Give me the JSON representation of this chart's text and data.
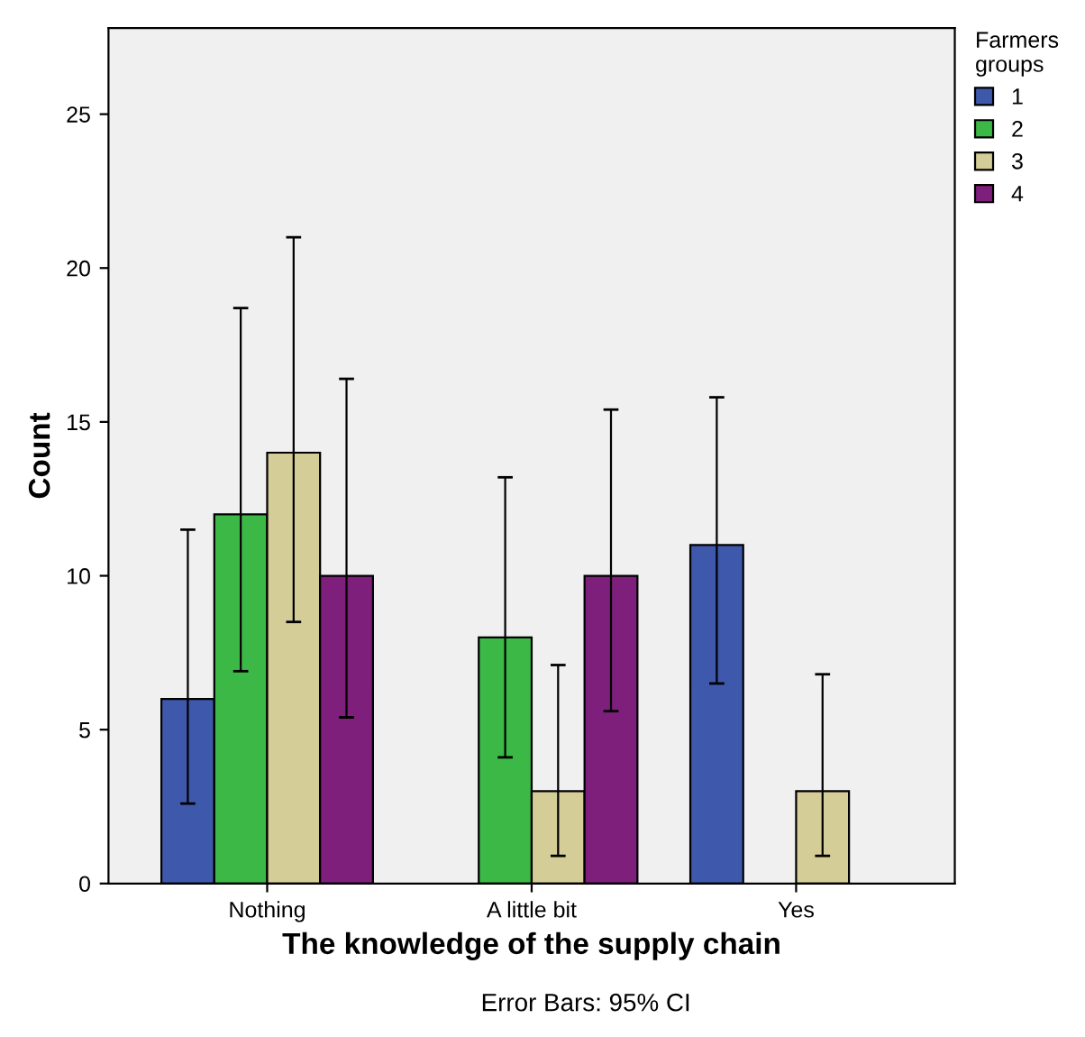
{
  "chart_data": {
    "type": "bar",
    "xlabel": "The knowledge of the supply chain",
    "ylabel": "Count",
    "legend_title": "Farmers\ngroups",
    "categories": [
      "Nothing",
      "A little bit",
      "Yes"
    ],
    "series": [
      {
        "name": "1",
        "color": "#3e58ac",
        "values": [
          6,
          null,
          11
        ],
        "errors": [
          [
            2.6,
            11.5
          ],
          null,
          [
            6.5,
            15.8
          ]
        ]
      },
      {
        "name": "2",
        "color": "#3cb846",
        "values": [
          12,
          8,
          null
        ],
        "errors": [
          [
            6.9,
            18.7
          ],
          [
            4.1,
            13.2
          ],
          null
        ]
      },
      {
        "name": "3",
        "color": "#d4cd97",
        "values": [
          14,
          3,
          3
        ],
        "errors": [
          [
            8.5,
            21
          ],
          [
            0.9,
            7.1
          ],
          [
            0.9,
            6.8
          ]
        ]
      },
      {
        "name": "4",
        "color": "#7e1f7c",
        "values": [
          10,
          10,
          null
        ],
        "errors": [
          [
            5.4,
            16.4
          ],
          [
            5.6,
            15.4
          ],
          null
        ]
      }
    ],
    "ylim": [
      0,
      27.8
    ],
    "yticks": [
      0,
      5,
      10,
      15,
      20,
      25
    ],
    "grid": false,
    "legend": "top right",
    "annotations": [
      "Error Bars: 95% CI"
    ]
  }
}
